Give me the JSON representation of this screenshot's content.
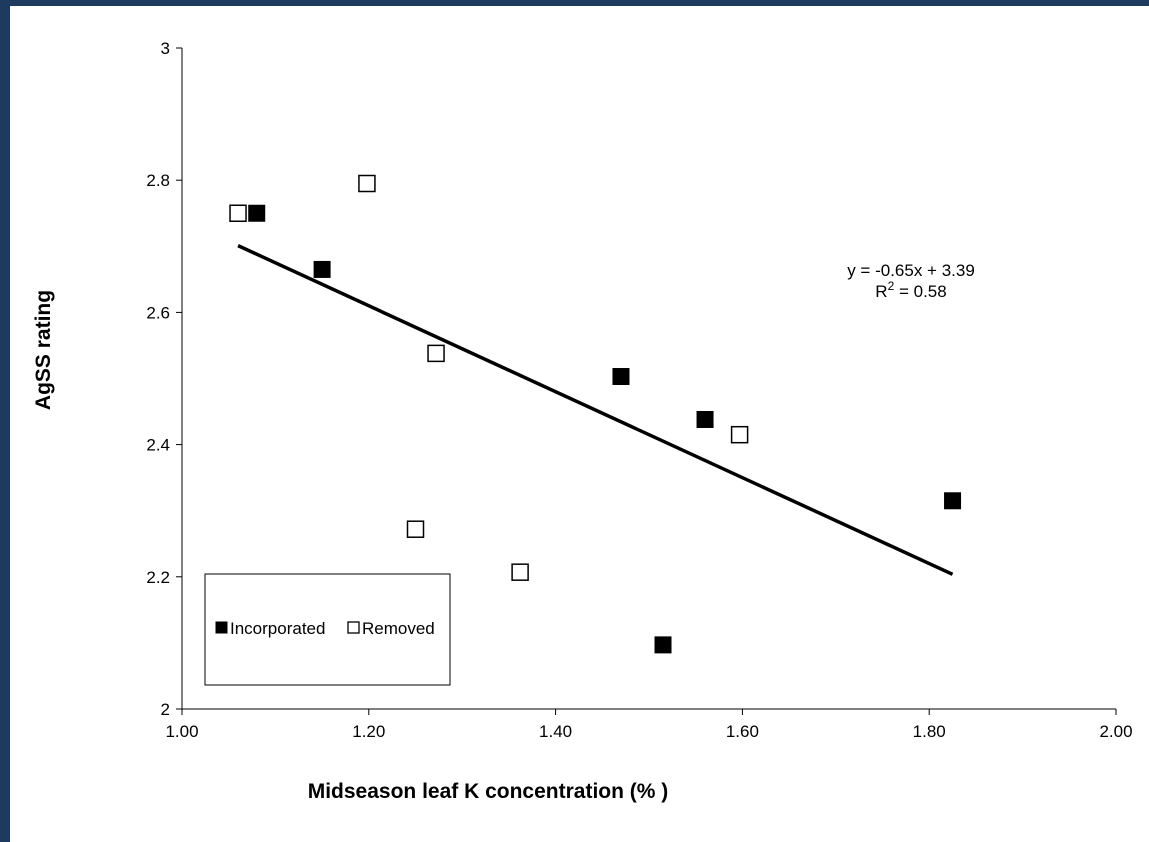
{
  "chart_data": {
    "type": "scatter",
    "xlabel": "Midseason leaf K concentration (% )",
    "ylabel": "AgSS rating",
    "xlim": [
      1.0,
      2.0
    ],
    "ylim": [
      2.0,
      3.0
    ],
    "x_ticks": [
      "1.00",
      "1.20",
      "1.40",
      "1.60",
      "1.80",
      "2.00"
    ],
    "y_ticks": [
      "2",
      "2.2",
      "2.4",
      "2.6",
      "2.8",
      "3"
    ],
    "grid": false,
    "legend_position": "bottom-left",
    "series": [
      {
        "name": "Incorporated",
        "marker": "filled-square",
        "color": "#000000",
        "points": [
          {
            "x": 1.08,
            "y": 2.75
          },
          {
            "x": 1.15,
            "y": 2.665
          },
          {
            "x": 1.47,
            "y": 2.503
          },
          {
            "x": 1.56,
            "y": 2.438
          },
          {
            "x": 1.825,
            "y": 2.315
          },
          {
            "x": 1.515,
            "y": 2.097
          }
        ]
      },
      {
        "name": "Removed",
        "marker": "open-square",
        "color": "#000000",
        "points": [
          {
            "x": 1.06,
            "y": 2.75
          },
          {
            "x": 1.198,
            "y": 2.795
          },
          {
            "x": 1.272,
            "y": 2.538
          },
          {
            "x": 1.597,
            "y": 2.415
          },
          {
            "x": 1.25,
            "y": 2.272
          },
          {
            "x": 1.362,
            "y": 2.207
          }
        ]
      }
    ],
    "trendline": {
      "slope": -0.65,
      "intercept": 3.39,
      "x_range": [
        1.06,
        1.825
      ],
      "equation_text": "y = -0.65x + 3.39",
      "r2_prefix": "R",
      "r2_sup": "2",
      "r2_suffix": " = 0.58"
    }
  }
}
